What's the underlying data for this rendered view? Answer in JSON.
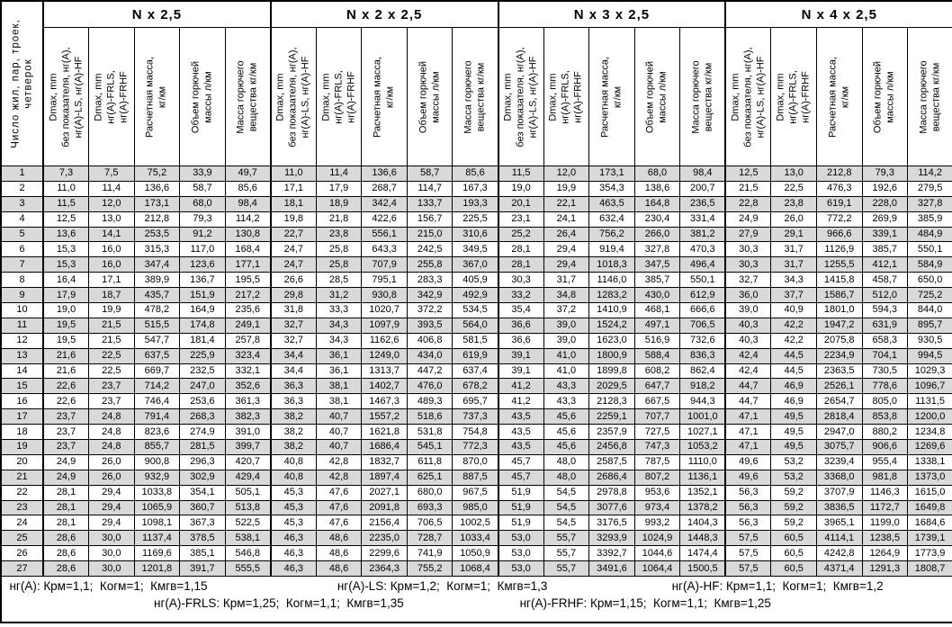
{
  "table": {
    "corner_header": "Число жил, пар, троек,\nчетверок",
    "groups": [
      {
        "title": "N x 2,5"
      },
      {
        "title": "N x 2 x 2,5"
      },
      {
        "title": "N x 3 x 2,5"
      },
      {
        "title": "N x 4 x 2,5"
      }
    ],
    "column_headers": [
      "Dmax, mm\nбез показателя, нг(A),\nнг(A)-LS, нг(A)-HF",
      "Dmax, mm\nнг(A)-FRLS,\nнг(A)-FRHF",
      "Расчетная масса,\nкг/км",
      "Объем горючей\nмассы л/км",
      "Масса горючего\nвещества кг/км"
    ],
    "rows": [
      [
        "1",
        "7,3",
        "7,5",
        "75,2",
        "33,9",
        "49,7",
        "11,0",
        "11,4",
        "136,6",
        "58,7",
        "85,6",
        "11,5",
        "12,0",
        "173,1",
        "68,0",
        "98,4",
        "12,5",
        "13,0",
        "212,8",
        "79,3",
        "114,2"
      ],
      [
        "2",
        "11,0",
        "11,4",
        "136,6",
        "58,7",
        "85,6",
        "17,1",
        "17,9",
        "268,7",
        "114,7",
        "167,3",
        "19,0",
        "19,9",
        "354,3",
        "138,6",
        "200,7",
        "21,5",
        "22,5",
        "476,3",
        "192,6",
        "279,5"
      ],
      [
        "3",
        "11,5",
        "12,0",
        "173,1",
        "68,0",
        "98,4",
        "18,1",
        "18,9",
        "342,4",
        "133,7",
        "193,3",
        "20,1",
        "22,1",
        "463,5",
        "164,8",
        "236,5",
        "22,8",
        "23,8",
        "619,1",
        "228,0",
        "327,8"
      ],
      [
        "4",
        "12,5",
        "13,0",
        "212,8",
        "79,3",
        "114,2",
        "19,8",
        "21,8",
        "422,6",
        "156,7",
        "225,5",
        "23,1",
        "24,1",
        "632,4",
        "230,4",
        "331,4",
        "24,9",
        "26,0",
        "772,2",
        "269,9",
        "385,9"
      ],
      [
        "5",
        "13,6",
        "14,1",
        "253,5",
        "91,2",
        "130,8",
        "22,7",
        "23,8",
        "556,1",
        "215,0",
        "310,6",
        "25,2",
        "26,4",
        "756,2",
        "266,0",
        "381,2",
        "27,9",
        "29,1",
        "966,6",
        "339,1",
        "484,9"
      ],
      [
        "6",
        "15,3",
        "16,0",
        "315,3",
        "117,0",
        "168,4",
        "24,7",
        "25,8",
        "643,3",
        "242,5",
        "349,5",
        "28,1",
        "29,4",
        "919,4",
        "327,8",
        "470,3",
        "30,3",
        "31,7",
        "1126,9",
        "385,7",
        "550,1"
      ],
      [
        "7",
        "15,3",
        "16,0",
        "347,4",
        "123,6",
        "177,1",
        "24,7",
        "25,8",
        "707,9",
        "255,8",
        "367,0",
        "28,1",
        "29,4",
        "1018,3",
        "347,5",
        "496,4",
        "30,3",
        "31,7",
        "1255,5",
        "412,1",
        "584,9"
      ],
      [
        "8",
        "16,4",
        "17,1",
        "389,9",
        "136,7",
        "195,5",
        "26,6",
        "28,5",
        "795,1",
        "283,3",
        "405,9",
        "30,3",
        "31,7",
        "1146,0",
        "385,7",
        "550,1",
        "32,7",
        "34,3",
        "1415,8",
        "458,7",
        "650,0"
      ],
      [
        "9",
        "17,9",
        "18,7",
        "435,7",
        "151,9",
        "217,2",
        "29,8",
        "31,2",
        "930,8",
        "342,9",
        "492,9",
        "33,2",
        "34,8",
        "1283,2",
        "430,0",
        "612,9",
        "36,0",
        "37,7",
        "1586,7",
        "512,0",
        "725,2"
      ],
      [
        "10",
        "19,0",
        "19,9",
        "478,2",
        "164,9",
        "235,6",
        "31,8",
        "33,3",
        "1020,7",
        "372,2",
        "534,5",
        "35,4",
        "37,2",
        "1410,9",
        "468,1",
        "666,6",
        "39,0",
        "40,9",
        "1801,0",
        "594,3",
        "844,0"
      ],
      [
        "11",
        "19,5",
        "21,5",
        "515,5",
        "174,8",
        "249,1",
        "32,7",
        "34,3",
        "1097,9",
        "393,5",
        "564,0",
        "36,6",
        "39,0",
        "1524,2",
        "497,1",
        "706,5",
        "40,3",
        "42,2",
        "1947,2",
        "631,9",
        "895,7"
      ],
      [
        "12",
        "19,5",
        "21,5",
        "547,7",
        "181,4",
        "257,8",
        "32,7",
        "34,3",
        "1162,6",
        "406,8",
        "581,5",
        "36,6",
        "39,0",
        "1623,0",
        "516,9",
        "732,6",
        "40,3",
        "42,2",
        "2075,8",
        "658,3",
        "930,5"
      ],
      [
        "13",
        "21,6",
        "22,5",
        "637,5",
        "225,9",
        "323,4",
        "34,4",
        "36,1",
        "1249,0",
        "434,0",
        "619,9",
        "39,1",
        "41,0",
        "1800,9",
        "588,4",
        "836,3",
        "42,4",
        "44,5",
        "2234,9",
        "704,1",
        "994,5"
      ],
      [
        "14",
        "21,6",
        "22,5",
        "669,7",
        "232,5",
        "332,1",
        "34,4",
        "36,1",
        "1313,7",
        "447,2",
        "637,4",
        "39,1",
        "41,0",
        "1899,8",
        "608,2",
        "862,4",
        "42,4",
        "44,5",
        "2363,5",
        "730,5",
        "1029,3"
      ],
      [
        "15",
        "22,6",
        "23,7",
        "714,2",
        "247,0",
        "352,6",
        "36,3",
        "38,1",
        "1402,7",
        "476,0",
        "678,2",
        "41,2",
        "43,3",
        "2029,5",
        "647,7",
        "918,2",
        "44,7",
        "46,9",
        "2526,1",
        "778,6",
        "1096,7"
      ],
      [
        "16",
        "22,6",
        "23,7",
        "746,4",
        "253,6",
        "361,3",
        "36,3",
        "38,1",
        "1467,3",
        "489,3",
        "695,7",
        "41,2",
        "43,3",
        "2128,3",
        "667,5",
        "944,3",
        "44,7",
        "46,9",
        "2654,7",
        "805,0",
        "1131,5"
      ],
      [
        "17",
        "23,7",
        "24,8",
        "791,4",
        "268,3",
        "382,3",
        "38,2",
        "40,7",
        "1557,2",
        "518,6",
        "737,3",
        "43,5",
        "45,6",
        "2259,1",
        "707,7",
        "1001,0",
        "47,1",
        "49,5",
        "2818,4",
        "853,8",
        "1200,0"
      ],
      [
        "18",
        "23,7",
        "24,8",
        "823,6",
        "274,9",
        "391,0",
        "38,2",
        "40,7",
        "1621,8",
        "531,8",
        "754,8",
        "43,5",
        "45,6",
        "2357,9",
        "727,5",
        "1027,1",
        "47,1",
        "49,5",
        "2947,0",
        "880,2",
        "1234,8"
      ],
      [
        "19",
        "23,7",
        "24,8",
        "855,7",
        "281,5",
        "399,7",
        "38,2",
        "40,7",
        "1686,4",
        "545,1",
        "772,3",
        "43,5",
        "45,6",
        "2456,8",
        "747,3",
        "1053,2",
        "47,1",
        "49,5",
        "3075,7",
        "906,6",
        "1269,6"
      ],
      [
        "20",
        "24,9",
        "26,0",
        "900,8",
        "296,3",
        "420,7",
        "40,8",
        "42,8",
        "1832,7",
        "611,8",
        "870,0",
        "45,7",
        "48,0",
        "2587,5",
        "787,5",
        "1110,0",
        "49,6",
        "53,2",
        "3239,4",
        "955,4",
        "1338,1"
      ],
      [
        "21",
        "24,9",
        "26,0",
        "932,9",
        "302,9",
        "429,4",
        "40,8",
        "42,8",
        "1897,4",
        "625,1",
        "887,5",
        "45,7",
        "48,0",
        "2686,4",
        "807,2",
        "1136,1",
        "49,6",
        "53,2",
        "3368,0",
        "981,8",
        "1373,0"
      ],
      [
        "22",
        "28,1",
        "29,4",
        "1033,8",
        "354,1",
        "505,1",
        "45,3",
        "47,6",
        "2027,1",
        "680,0",
        "967,5",
        "51,9",
        "54,5",
        "2978,8",
        "953,6",
        "1352,1",
        "56,3",
        "59,2",
        "3707,9",
        "1146,3",
        "1615,0"
      ],
      [
        "23",
        "28,1",
        "29,4",
        "1065,9",
        "360,7",
        "513,8",
        "45,3",
        "47,6",
        "2091,8",
        "693,3",
        "985,0",
        "51,9",
        "54,5",
        "3077,6",
        "973,4",
        "1378,2",
        "56,3",
        "59,2",
        "3836,5",
        "1172,7",
        "1649,8"
      ],
      [
        "24",
        "28,1",
        "29,4",
        "1098,1",
        "367,3",
        "522,5",
        "45,3",
        "47,6",
        "2156,4",
        "706,5",
        "1002,5",
        "51,9",
        "54,5",
        "3176,5",
        "993,2",
        "1404,3",
        "56,3",
        "59,2",
        "3965,1",
        "1199,0",
        "1684,6"
      ],
      [
        "25",
        "28,6",
        "30,0",
        "1137,4",
        "378,5",
        "538,1",
        "46,3",
        "48,6",
        "2235,0",
        "728,7",
        "1033,4",
        "53,0",
        "55,7",
        "3293,9",
        "1024,9",
        "1448,3",
        "57,5",
        "60,5",
        "4114,1",
        "1238,5",
        "1739,1"
      ],
      [
        "26",
        "28,6",
        "30,0",
        "1169,6",
        "385,1",
        "546,8",
        "46,3",
        "48,6",
        "2299,6",
        "741,9",
        "1050,9",
        "53,0",
        "55,7",
        "3392,7",
        "1044,6",
        "1474,4",
        "57,5",
        "60,5",
        "4242,8",
        "1264,9",
        "1773,9"
      ],
      [
        "27",
        "28,6",
        "30,0",
        "1201,8",
        "391,7",
        "555,5",
        "46,3",
        "48,6",
        "2364,3",
        "755,2",
        "1068,4",
        "53,0",
        "55,7",
        "3491,6",
        "1064,4",
        "1500,5",
        "57,5",
        "60,5",
        "4371,4",
        "1291,3",
        "1808,7"
      ]
    ],
    "footer": {
      "line1": [
        "нг(A): Крм=1,1;  Когм=1;  Кмгв=1,15",
        "нг(A)-LS: Крм=1,2;  Когм=1;  Кмгв=1,3",
        "нг(A)-HF: Крм=1,1;  Когм=1;  Кмгв=1,2"
      ],
      "line2": [
        "нг(A)-FRLS: Крм=1,25;  Когм=1,1;  Кмгв=1,35",
        "нг(A)-FRHF: Крм=1,15;  Когм=1,1;  Кмгв=1,25"
      ]
    },
    "colors": {
      "row_shade": "#d9d9d9",
      "border": "#000000",
      "background": "#ffffff",
      "text": "#000000"
    }
  }
}
